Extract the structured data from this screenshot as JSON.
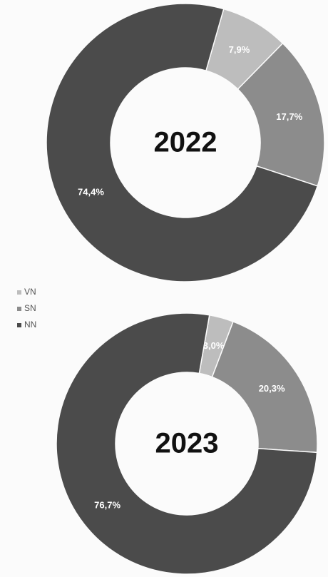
{
  "chart_data": [
    {
      "type": "pie",
      "title": "2022",
      "categories": [
        "VN",
        "SN",
        "NN"
      ],
      "values": [
        7.9,
        17.7,
        74.4
      ],
      "value_labels": [
        "7,9%",
        "17,7%",
        "74,4%"
      ],
      "colors": [
        "#bdbdbd",
        "#8c8c8c",
        "#4b4b4b"
      ],
      "legend": "left"
    },
    {
      "type": "pie",
      "title": "2023",
      "categories": [
        "VN",
        "SN",
        "NN"
      ],
      "values": [
        3.0,
        20.3,
        76.7
      ],
      "value_labels": [
        "3,0%",
        "20,3%",
        "76,7%"
      ],
      "colors": [
        "#bdbdbd",
        "#8c8c8c",
        "#4b4b4b"
      ]
    }
  ]
}
